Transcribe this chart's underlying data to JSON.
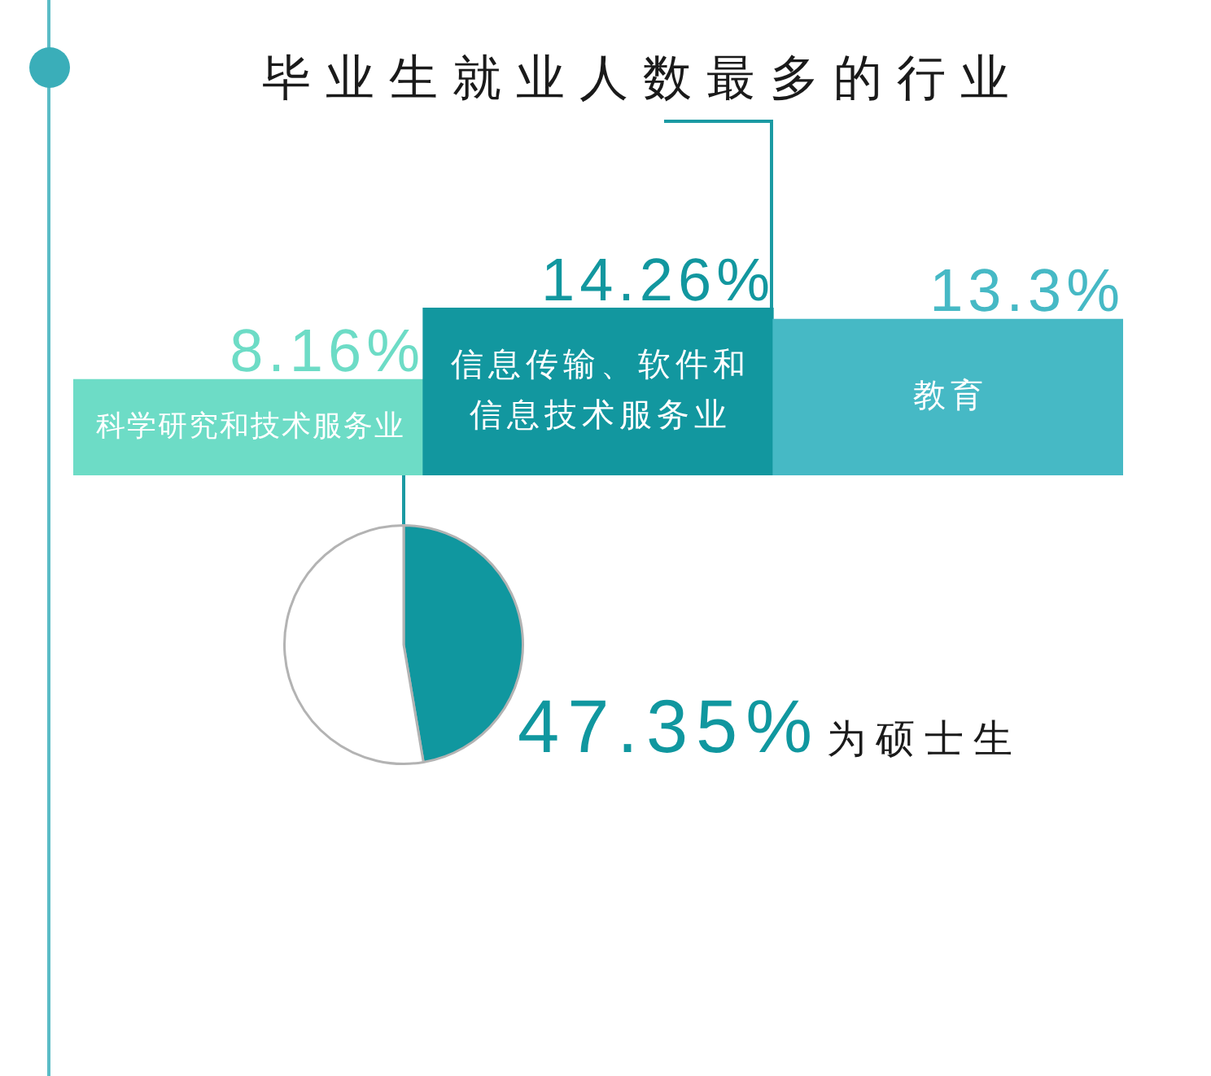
{
  "chart_data": [
    {
      "type": "bar",
      "title": "毕业生就业人数最多的行业",
      "categories": [
        "科学研究和技术服务业",
        "信息传输、软件和信息技术服务业",
        "教育"
      ],
      "values": [
        8.16,
        14.26,
        13.3
      ],
      "colors": [
        "#6ddcc6",
        "#12979f",
        "#46b9c5"
      ],
      "value_labels": [
        "8.16%",
        "14.26%",
        "13.3%"
      ],
      "tick_labels": "x"
    },
    {
      "type": "pie",
      "categories": [
        "为硕士生",
        null
      ],
      "values": [
        47.35,
        52.65
      ],
      "colors": [
        "#10979f",
        "#ffffff"
      ],
      "value_labels": [
        "47.35%",
        null
      ]
    }
  ]
}
